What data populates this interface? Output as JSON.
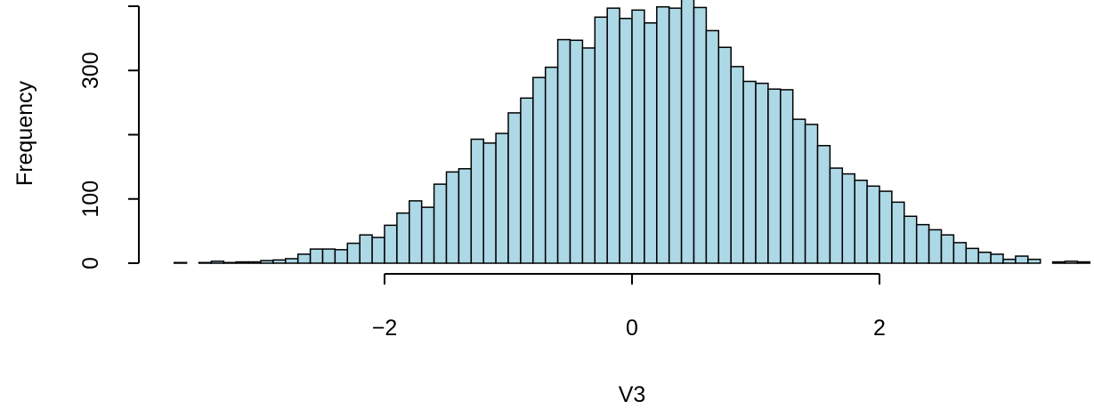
{
  "chart_data": {
    "type": "bar",
    "subtype": "histogram",
    "title": "",
    "xlabel": "V3",
    "ylabel": "Frequency",
    "bin_width": 0.1,
    "x_start": -3.7,
    "xticks": [
      -2,
      0,
      2
    ],
    "xtick_labels": [
      "−2",
      "0",
      "2"
    ],
    "yticks": [
      0,
      100,
      200,
      300,
      400
    ],
    "ytick_labels": [
      "0",
      "100",
      "",
      "300",
      ""
    ],
    "xlim": [
      -3.7,
      3.7
    ],
    "ylim": [
      0,
      410
    ],
    "values": [
      1,
      0,
      1,
      3,
      1,
      2,
      2,
      4,
      5,
      7,
      14,
      22,
      22,
      21,
      31,
      44,
      40,
      59,
      78,
      97,
      87,
      123,
      142,
      147,
      193,
      187,
      202,
      234,
      257,
      289,
      305,
      348,
      347,
      335,
      383,
      397,
      381,
      394,
      374,
      399,
      397,
      411,
      398,
      362,
      336,
      306,
      283,
      280,
      271,
      270,
      224,
      216,
      183,
      148,
      139,
      129,
      120,
      112,
      95,
      73,
      60,
      52,
      44,
      32,
      23,
      17,
      14,
      6,
      11,
      6,
      0,
      2,
      3,
      2,
      0,
      1,
      0,
      0,
      0
    ],
    "colors": {
      "bar_fill": "#add8e6",
      "bar_stroke": "#000000",
      "axis": "#000000"
    },
    "grid": false
  }
}
